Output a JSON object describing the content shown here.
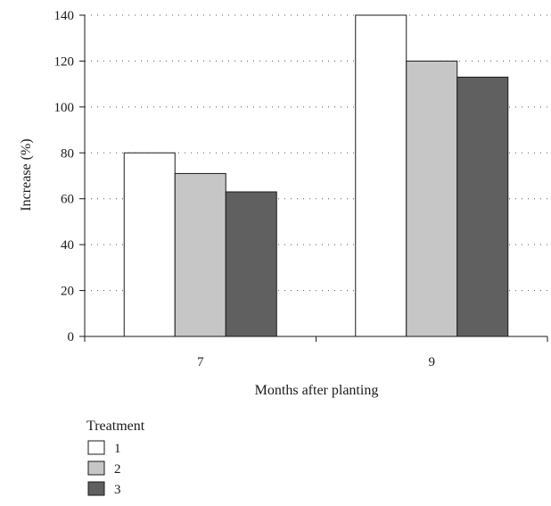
{
  "chart_data": {
    "type": "bar",
    "title": "",
    "xlabel": "Months after planting",
    "ylabel": "Increase (%)",
    "categories": [
      "7",
      "9"
    ],
    "series": [
      {
        "name": "1",
        "values": [
          80,
          140
        ],
        "color": "#ffffff"
      },
      {
        "name": "2",
        "values": [
          71,
          120
        ],
        "color": "#c6c6c6"
      },
      {
        "name": "3",
        "values": [
          63,
          113
        ],
        "color": "#5f605f"
      }
    ],
    "ylim": [
      0,
      140
    ],
    "yticks": [
      0,
      20,
      40,
      60,
      80,
      100,
      120,
      140
    ],
    "grid": true,
    "legend": {
      "title": "Treatment",
      "placement": "bottom-left"
    }
  }
}
